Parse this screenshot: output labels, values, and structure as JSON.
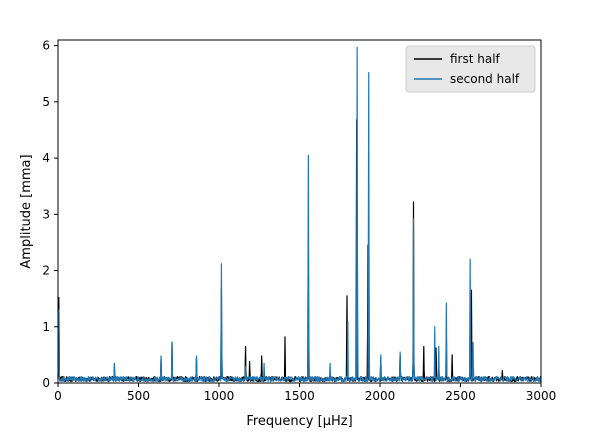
{
  "chart_data": {
    "type": "line",
    "xlabel": "Frequency [μHz]",
    "ylabel": "Amplitude [mma]",
    "xlim": [
      0,
      3000
    ],
    "ylim": [
      0,
      6.1
    ],
    "xticks": [
      0,
      500,
      1000,
      1500,
      2000,
      2500,
      3000
    ],
    "yticks": [
      0,
      1,
      2,
      3,
      4,
      5,
      6
    ],
    "grid": false,
    "legend_placement": "top-right",
    "noise_floor": 0.1,
    "series": [
      {
        "name": "first half",
        "color": "#000000",
        "peaks": [
          {
            "x": 5,
            "y": 1.52
          },
          {
            "x": 350,
            "y": 0.3
          },
          {
            "x": 640,
            "y": 0.42
          },
          {
            "x": 708,
            "y": 0.72
          },
          {
            "x": 860,
            "y": 0.45
          },
          {
            "x": 1015,
            "y": 1.68
          },
          {
            "x": 1165,
            "y": 0.65
          },
          {
            "x": 1190,
            "y": 0.38
          },
          {
            "x": 1265,
            "y": 0.48
          },
          {
            "x": 1410,
            "y": 0.82
          },
          {
            "x": 1555,
            "y": 2.62
          },
          {
            "x": 1795,
            "y": 1.55
          },
          {
            "x": 1855,
            "y": 4.68
          },
          {
            "x": 1925,
            "y": 2.45
          },
          {
            "x": 2005,
            "y": 0.45
          },
          {
            "x": 2125,
            "y": 0.5
          },
          {
            "x": 2208,
            "y": 3.22
          },
          {
            "x": 2272,
            "y": 0.65
          },
          {
            "x": 2348,
            "y": 0.62
          },
          {
            "x": 2412,
            "y": 0.95
          },
          {
            "x": 2448,
            "y": 0.5
          },
          {
            "x": 2568,
            "y": 1.65
          },
          {
            "x": 2760,
            "y": 0.22
          }
        ]
      },
      {
        "name": "second half",
        "color": "#1f77b4",
        "peaks": [
          {
            "x": 5,
            "y": 1.3
          },
          {
            "x": 350,
            "y": 0.35
          },
          {
            "x": 640,
            "y": 0.48
          },
          {
            "x": 708,
            "y": 0.73
          },
          {
            "x": 860,
            "y": 0.48
          },
          {
            "x": 1015,
            "y": 2.12
          },
          {
            "x": 1165,
            "y": 0.3
          },
          {
            "x": 1280,
            "y": 0.35
          },
          {
            "x": 1555,
            "y": 4.05
          },
          {
            "x": 1690,
            "y": 0.35
          },
          {
            "x": 1800,
            "y": 1.1
          },
          {
            "x": 1858,
            "y": 5.97
          },
          {
            "x": 1930,
            "y": 5.52
          },
          {
            "x": 2005,
            "y": 0.5
          },
          {
            "x": 2125,
            "y": 0.55
          },
          {
            "x": 2208,
            "y": 2.92
          },
          {
            "x": 2340,
            "y": 1.0
          },
          {
            "x": 2365,
            "y": 0.65
          },
          {
            "x": 2412,
            "y": 1.42
          },
          {
            "x": 2560,
            "y": 2.2
          },
          {
            "x": 2578,
            "y": 0.72
          }
        ]
      }
    ]
  }
}
